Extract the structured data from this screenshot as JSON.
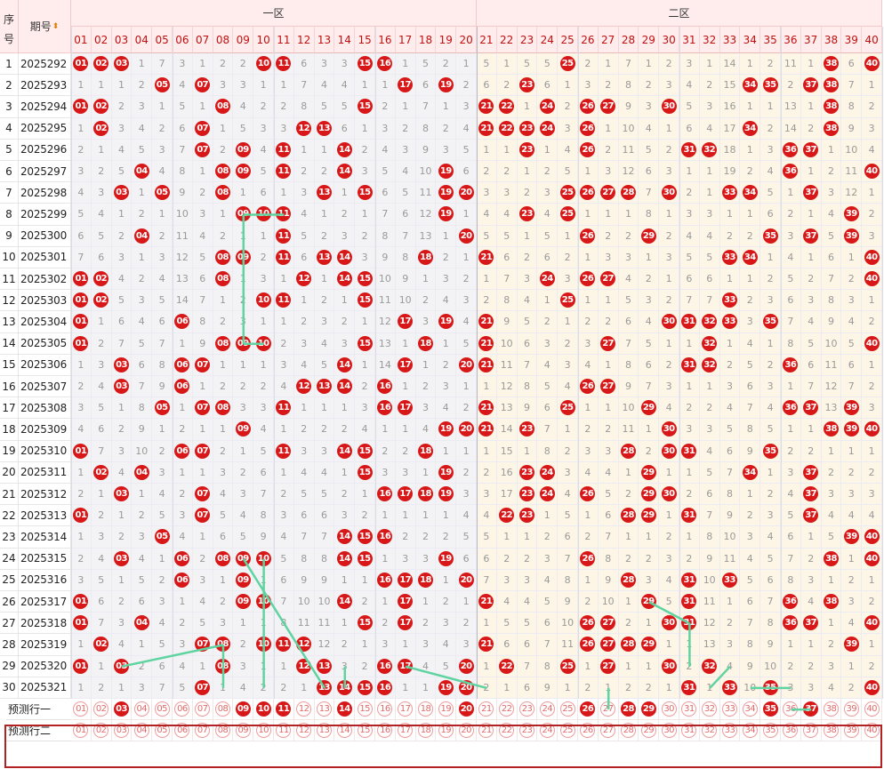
{
  "headers": {
    "index": "序号",
    "period": "期号",
    "sort_icon": "sort-arrows-icon",
    "zone1": "一区",
    "zone2": "二区"
  },
  "numbers": [
    "01",
    "02",
    "03",
    "04",
    "05",
    "06",
    "07",
    "08",
    "09",
    "10",
    "11",
    "12",
    "13",
    "14",
    "15",
    "16",
    "17",
    "18",
    "19",
    "20",
    "21",
    "22",
    "23",
    "24",
    "25",
    "26",
    "27",
    "28",
    "29",
    "30",
    "31",
    "32",
    "33",
    "34",
    "35",
    "36",
    "37",
    "38",
    "39",
    "40"
  ],
  "rows": [
    {
      "idx": "1",
      "period": "2025292",
      "cells": [
        "01",
        "02",
        "03",
        "1",
        "7",
        "3",
        "1",
        "2",
        "2",
        "10",
        "11",
        "6",
        "3",
        "3",
        "15",
        "16",
        "1",
        "5",
        "2",
        "1",
        "5",
        "1",
        "5",
        "5",
        "25",
        "2",
        "1",
        "7",
        "1",
        "2",
        "3",
        "1",
        "14",
        "1",
        "2",
        "11",
        "1",
        "38",
        "6",
        "40"
      ]
    },
    {
      "idx": "2",
      "period": "2025293",
      "cells": [
        "1",
        "1",
        "1",
        "2",
        "05",
        "4",
        "07",
        "3",
        "3",
        "1",
        "1",
        "7",
        "4",
        "4",
        "1",
        "1",
        "17",
        "6",
        "19",
        "2",
        "6",
        "2",
        "23",
        "6",
        "1",
        "3",
        "2",
        "8",
        "2",
        "3",
        "4",
        "2",
        "15",
        "34",
        "35",
        "2",
        "37",
        "38",
        "7",
        "1"
      ]
    },
    {
      "idx": "3",
      "period": "2025294",
      "cells": [
        "01",
        "02",
        "2",
        "3",
        "1",
        "5",
        "1",
        "08",
        "4",
        "2",
        "2",
        "8",
        "5",
        "5",
        "15",
        "2",
        "1",
        "7",
        "1",
        "3",
        "21",
        "22",
        "1",
        "24",
        "2",
        "26",
        "27",
        "9",
        "3",
        "30",
        "5",
        "3",
        "16",
        "1",
        "1",
        "13",
        "1",
        "38",
        "8",
        "2"
      ]
    },
    {
      "idx": "4",
      "period": "2025295",
      "cells": [
        "1",
        "02",
        "3",
        "4",
        "2",
        "6",
        "07",
        "1",
        "5",
        "3",
        "3",
        "12",
        "13",
        "6",
        "1",
        "3",
        "2",
        "8",
        "2",
        "4",
        "21",
        "22",
        "23",
        "24",
        "3",
        "26",
        "1",
        "10",
        "4",
        "1",
        "6",
        "4",
        "17",
        "34",
        "2",
        "14",
        "2",
        "38",
        "9",
        "3"
      ]
    },
    {
      "idx": "5",
      "period": "2025296",
      "cells": [
        "2",
        "1",
        "4",
        "5",
        "3",
        "7",
        "07",
        "2",
        "09",
        "4",
        "11",
        "1",
        "1",
        "14",
        "2",
        "4",
        "3",
        "9",
        "3",
        "5",
        "1",
        "1",
        "23",
        "1",
        "4",
        "26",
        "2",
        "11",
        "5",
        "2",
        "31",
        "32",
        "18",
        "1",
        "3",
        "36",
        "37",
        "1",
        "10",
        "4"
      ]
    },
    {
      "idx": "6",
      "period": "2025297",
      "cells": [
        "3",
        "2",
        "5",
        "04",
        "4",
        "8",
        "1",
        "08",
        "09",
        "5",
        "11",
        "2",
        "2",
        "14",
        "3",
        "5",
        "4",
        "10",
        "19",
        "6",
        "2",
        "2",
        "1",
        "2",
        "5",
        "1",
        "3",
        "12",
        "6",
        "3",
        "1",
        "1",
        "19",
        "2",
        "4",
        "36",
        "1",
        "2",
        "11",
        "40"
      ]
    },
    {
      "idx": "7",
      "period": "2025298",
      "cells": [
        "4",
        "3",
        "03",
        "1",
        "05",
        "9",
        "2",
        "08",
        "1",
        "6",
        "1",
        "3",
        "13",
        "1",
        "15",
        "6",
        "5",
        "11",
        "19",
        "20",
        "3",
        "3",
        "2",
        "3",
        "25",
        "26",
        "27",
        "28",
        "7",
        "30",
        "2",
        "1",
        "33",
        "34",
        "5",
        "1",
        "37",
        "3",
        "12",
        "1"
      ]
    },
    {
      "idx": "8",
      "period": "2025299",
      "cells": [
        "5",
        "4",
        "1",
        "2",
        "1",
        "10",
        "3",
        "1",
        "09",
        "10",
        "11",
        "4",
        "1",
        "2",
        "1",
        "7",
        "6",
        "12",
        "19",
        "1",
        "4",
        "4",
        "23",
        "4",
        "25",
        "1",
        "1",
        "1",
        "8",
        "1",
        "3",
        "3",
        "1",
        "1",
        "6",
        "2",
        "1",
        "4",
        "39",
        "2"
      ]
    },
    {
      "idx": "9",
      "period": "2025300",
      "cells": [
        "6",
        "5",
        "2",
        "04",
        "2",
        "11",
        "4",
        "2",
        "1",
        "1",
        "11",
        "5",
        "2",
        "3",
        "2",
        "8",
        "7",
        "13",
        "1",
        "20",
        "5",
        "5",
        "1",
        "5",
        "1",
        "26",
        "2",
        "2",
        "29",
        "2",
        "4",
        "4",
        "2",
        "2",
        "35",
        "3",
        "37",
        "5",
        "39",
        "3"
      ]
    },
    {
      "idx": "10",
      "period": "2025301",
      "cells": [
        "7",
        "6",
        "3",
        "1",
        "3",
        "12",
        "5",
        "08",
        "09",
        "2",
        "11",
        "6",
        "13",
        "14",
        "3",
        "9",
        "8",
        "18",
        "2",
        "1",
        "21",
        "6",
        "2",
        "6",
        "2",
        "1",
        "3",
        "3",
        "1",
        "3",
        "5",
        "5",
        "33",
        "34",
        "1",
        "4",
        "1",
        "6",
        "1",
        "40"
      ]
    },
    {
      "idx": "11",
      "period": "2025302",
      "cells": [
        "01",
        "02",
        "4",
        "2",
        "4",
        "13",
        "6",
        "08",
        "1",
        "3",
        "1",
        "12",
        "1",
        "14",
        "15",
        "10",
        "9",
        "1",
        "3",
        "2",
        "1",
        "7",
        "3",
        "24",
        "3",
        "26",
        "27",
        "4",
        "2",
        "1",
        "6",
        "6",
        "1",
        "1",
        "2",
        "5",
        "2",
        "7",
        "2",
        "40"
      ]
    },
    {
      "idx": "12",
      "period": "2025303",
      "cells": [
        "01",
        "02",
        "5",
        "3",
        "5",
        "14",
        "7",
        "1",
        "2",
        "10",
        "11",
        "1",
        "2",
        "1",
        "15",
        "11",
        "10",
        "2",
        "4",
        "3",
        "2",
        "8",
        "4",
        "1",
        "25",
        "1",
        "1",
        "5",
        "3",
        "2",
        "7",
        "7",
        "33",
        "2",
        "3",
        "6",
        "3",
        "8",
        "3",
        "1"
      ]
    },
    {
      "idx": "13",
      "period": "2025304",
      "cells": [
        "01",
        "1",
        "6",
        "4",
        "6",
        "06",
        "8",
        "2",
        "3",
        "1",
        "1",
        "2",
        "3",
        "2",
        "1",
        "12",
        "17",
        "3",
        "19",
        "4",
        "21",
        "9",
        "5",
        "2",
        "1",
        "2",
        "2",
        "6",
        "4",
        "30",
        "31",
        "32",
        "33",
        "3",
        "35",
        "7",
        "4",
        "9",
        "4",
        "2"
      ]
    },
    {
      "idx": "14",
      "period": "2025305",
      "cells": [
        "01",
        "2",
        "7",
        "5",
        "7",
        "1",
        "9",
        "08",
        "09",
        "10",
        "2",
        "3",
        "4",
        "3",
        "15",
        "13",
        "1",
        "18",
        "1",
        "5",
        "21",
        "10",
        "6",
        "3",
        "2",
        "3",
        "27",
        "7",
        "5",
        "1",
        "1",
        "32",
        "1",
        "4",
        "1",
        "8",
        "5",
        "10",
        "5",
        "40"
      ]
    },
    {
      "idx": "15",
      "period": "2025306",
      "cells": [
        "1",
        "3",
        "03",
        "6",
        "8",
        "06",
        "07",
        "1",
        "1",
        "1",
        "3",
        "4",
        "5",
        "14",
        "1",
        "14",
        "17",
        "1",
        "2",
        "20",
        "21",
        "11",
        "7",
        "4",
        "3",
        "4",
        "1",
        "8",
        "6",
        "2",
        "31",
        "32",
        "2",
        "5",
        "2",
        "36",
        "6",
        "11",
        "6",
        "1"
      ]
    },
    {
      "idx": "16",
      "period": "2025307",
      "cells": [
        "2",
        "4",
        "03",
        "7",
        "9",
        "06",
        "1",
        "2",
        "2",
        "2",
        "4",
        "12",
        "13",
        "14",
        "2",
        "16",
        "1",
        "2",
        "3",
        "1",
        "1",
        "12",
        "8",
        "5",
        "4",
        "26",
        "27",
        "9",
        "7",
        "3",
        "1",
        "1",
        "3",
        "6",
        "3",
        "1",
        "7",
        "12",
        "7",
        "2"
      ]
    },
    {
      "idx": "17",
      "period": "2025308",
      "cells": [
        "3",
        "5",
        "1",
        "8",
        "05",
        "1",
        "07",
        "08",
        "3",
        "3",
        "11",
        "1",
        "1",
        "1",
        "3",
        "16",
        "17",
        "3",
        "4",
        "2",
        "21",
        "13",
        "9",
        "6",
        "25",
        "1",
        "1",
        "10",
        "29",
        "4",
        "2",
        "2",
        "4",
        "7",
        "4",
        "36",
        "37",
        "13",
        "39",
        "3"
      ]
    },
    {
      "idx": "18",
      "period": "2025309",
      "cells": [
        "4",
        "6",
        "2",
        "9",
        "1",
        "2",
        "1",
        "1",
        "09",
        "4",
        "1",
        "2",
        "2",
        "2",
        "4",
        "1",
        "1",
        "4",
        "19",
        "20",
        "21",
        "14",
        "23",
        "7",
        "1",
        "2",
        "2",
        "11",
        "1",
        "30",
        "3",
        "3",
        "5",
        "8",
        "5",
        "1",
        "1",
        "38",
        "39",
        "40"
      ]
    },
    {
      "idx": "19",
      "period": "2025310",
      "cells": [
        "01",
        "7",
        "3",
        "10",
        "2",
        "06",
        "07",
        "2",
        "1",
        "5",
        "11",
        "3",
        "3",
        "14",
        "15",
        "2",
        "2",
        "18",
        "1",
        "1",
        "1",
        "15",
        "1",
        "8",
        "2",
        "3",
        "3",
        "28",
        "2",
        "30",
        "31",
        "4",
        "6",
        "9",
        "35",
        "2",
        "2",
        "1",
        "1",
        "1"
      ]
    },
    {
      "idx": "20",
      "period": "2025311",
      "cells": [
        "1",
        "02",
        "4",
        "04",
        "3",
        "1",
        "1",
        "3",
        "2",
        "6",
        "1",
        "4",
        "4",
        "1",
        "15",
        "3",
        "3",
        "1",
        "19",
        "2",
        "2",
        "16",
        "23",
        "24",
        "3",
        "4",
        "4",
        "1",
        "29",
        "1",
        "1",
        "5",
        "7",
        "34",
        "1",
        "3",
        "37",
        "2",
        "2",
        "2"
      ]
    },
    {
      "idx": "21",
      "period": "2025312",
      "cells": [
        "2",
        "1",
        "03",
        "1",
        "4",
        "2",
        "07",
        "4",
        "3",
        "7",
        "2",
        "5",
        "5",
        "2",
        "1",
        "16",
        "17",
        "18",
        "19",
        "3",
        "3",
        "17",
        "23",
        "24",
        "4",
        "26",
        "5",
        "2",
        "29",
        "30",
        "2",
        "6",
        "8",
        "1",
        "2",
        "4",
        "37",
        "3",
        "3",
        "3"
      ]
    },
    {
      "idx": "22",
      "period": "2025313",
      "cells": [
        "01",
        "2",
        "1",
        "2",
        "5",
        "3",
        "07",
        "5",
        "4",
        "8",
        "3",
        "6",
        "6",
        "3",
        "2",
        "1",
        "1",
        "1",
        "1",
        "4",
        "4",
        "22",
        "23",
        "1",
        "5",
        "1",
        "6",
        "28",
        "29",
        "1",
        "31",
        "7",
        "9",
        "2",
        "3",
        "5",
        "37",
        "4",
        "4",
        "4"
      ]
    },
    {
      "idx": "23",
      "period": "2025314",
      "cells": [
        "1",
        "3",
        "2",
        "3",
        "05",
        "4",
        "1",
        "6",
        "5",
        "9",
        "4",
        "7",
        "7",
        "14",
        "15",
        "16",
        "2",
        "2",
        "2",
        "5",
        "5",
        "1",
        "1",
        "2",
        "6",
        "2",
        "7",
        "1",
        "1",
        "2",
        "1",
        "8",
        "10",
        "3",
        "4",
        "6",
        "1",
        "5",
        "39",
        "40"
      ]
    },
    {
      "idx": "24",
      "period": "2025315",
      "cells": [
        "2",
        "4",
        "03",
        "4",
        "1",
        "06",
        "2",
        "08",
        "09",
        "10",
        "5",
        "8",
        "8",
        "14",
        "15",
        "1",
        "3",
        "3",
        "19",
        "6",
        "6",
        "2",
        "2",
        "3",
        "7",
        "26",
        "8",
        "2",
        "2",
        "3",
        "2",
        "9",
        "11",
        "4",
        "5",
        "7",
        "2",
        "38",
        "1",
        "40"
      ]
    },
    {
      "idx": "25",
      "period": "2025316",
      "cells": [
        "3",
        "5",
        "1",
        "5",
        "2",
        "06",
        "3",
        "1",
        "09",
        "1",
        "6",
        "9",
        "9",
        "1",
        "1",
        "16",
        "17",
        "18",
        "1",
        "20",
        "7",
        "3",
        "3",
        "4",
        "8",
        "1",
        "9",
        "28",
        "3",
        "4",
        "31",
        "10",
        "33",
        "5",
        "6",
        "8",
        "3",
        "1",
        "2",
        "1"
      ]
    },
    {
      "idx": "26",
      "period": "2025317",
      "cells": [
        "01",
        "6",
        "2",
        "6",
        "3",
        "1",
        "4",
        "2",
        "09",
        "10",
        "7",
        "10",
        "10",
        "14",
        "2",
        "1",
        "17",
        "1",
        "2",
        "1",
        "21",
        "4",
        "4",
        "5",
        "9",
        "2",
        "10",
        "1",
        "29",
        "5",
        "31",
        "11",
        "1",
        "6",
        "7",
        "36",
        "4",
        "38",
        "3",
        "2"
      ]
    },
    {
      "idx": "27",
      "period": "2025318",
      "cells": [
        "01",
        "7",
        "3",
        "04",
        "4",
        "2",
        "5",
        "3",
        "1",
        "1",
        "8",
        "11",
        "11",
        "1",
        "15",
        "2",
        "17",
        "2",
        "3",
        "2",
        "1",
        "5",
        "5",
        "6",
        "10",
        "26",
        "27",
        "2",
        "1",
        "30",
        "31",
        "12",
        "2",
        "7",
        "8",
        "36",
        "37",
        "1",
        "4",
        "40"
      ]
    },
    {
      "idx": "28",
      "period": "2025319",
      "cells": [
        "1",
        "02",
        "4",
        "1",
        "5",
        "3",
        "07",
        "08",
        "2",
        "10",
        "11",
        "12",
        "12",
        "2",
        "1",
        "3",
        "1",
        "3",
        "4",
        "3",
        "21",
        "6",
        "6",
        "7",
        "11",
        "26",
        "27",
        "28",
        "29",
        "1",
        "1",
        "13",
        "3",
        "8",
        "9",
        "1",
        "1",
        "2",
        "39",
        "1"
      ]
    },
    {
      "idx": "29",
      "period": "2025320",
      "cells": [
        "01",
        "1",
        "03",
        "2",
        "6",
        "4",
        "1",
        "08",
        "3",
        "1",
        "1",
        "12",
        "13",
        "3",
        "2",
        "16",
        "17",
        "4",
        "5",
        "20",
        "1",
        "22",
        "7",
        "8",
        "25",
        "1",
        "27",
        "1",
        "1",
        "30",
        "2",
        "32",
        "4",
        "9",
        "10",
        "2",
        "2",
        "3",
        "1",
        "2"
      ]
    },
    {
      "idx": "30",
      "period": "2025321",
      "cells": [
        "1",
        "2",
        "1",
        "3",
        "7",
        "5",
        "07",
        "1",
        "4",
        "2",
        "2",
        "1",
        "13",
        "14",
        "15",
        "16",
        "1",
        "1",
        "19",
        "20",
        "2",
        "1",
        "6",
        "9",
        "1",
        "2",
        "1",
        "2",
        "2",
        "1",
        "31",
        "1",
        "33",
        "10",
        "35",
        "3",
        "3",
        "4",
        "2",
        "40"
      ]
    }
  ],
  "predict": [
    {
      "label": "预测行一",
      "selected": [
        "03",
        "09",
        "10",
        "11",
        "14",
        "20",
        "26",
        "28",
        "29",
        "35",
        "37"
      ]
    },
    {
      "label": "预测行二",
      "selected": []
    }
  ]
}
